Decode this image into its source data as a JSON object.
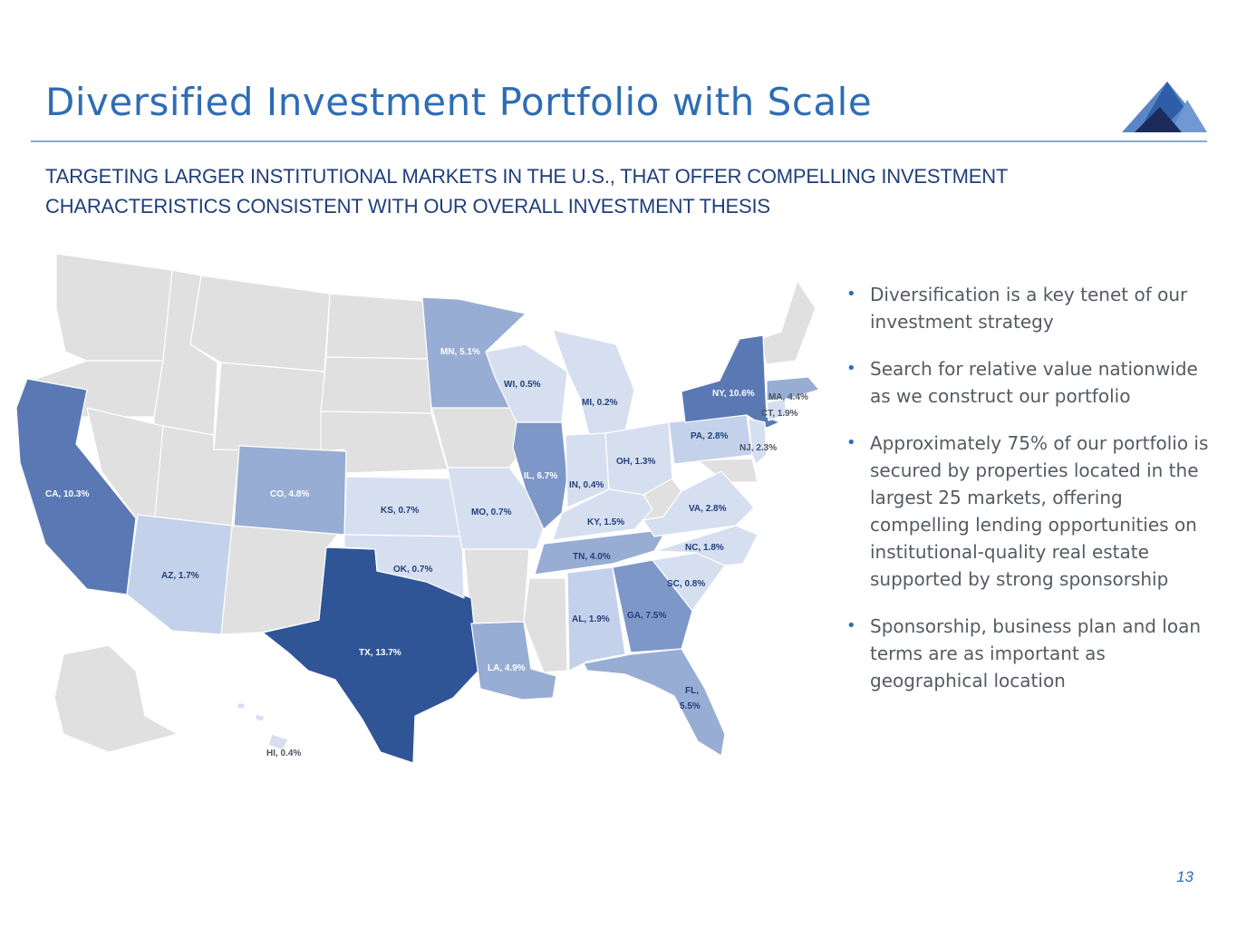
{
  "slide": {
    "title": "Diversified Investment Portfolio with Scale",
    "subtitle": "TARGETING LARGER INSTITUTIONAL MARKETS IN THE U.S., THAT OFFER COMPELLING INVESTMENT CHARACTERISTICS CONSISTENT WITH OUR OVERALL INVESTMENT THESIS",
    "page_number": "13"
  },
  "colors": {
    "title": "#2e6db4",
    "subtitle": "#1f3f7a",
    "no_allocation": "#e0e0e0",
    "tier_1": "#d6dff0",
    "tier_2": "#c4d1ea",
    "tier_3": "#98add3",
    "tier_4": "#7d97c8",
    "tier_5": "#5a79b4",
    "tier_6": "#2f5597"
  },
  "bullets": [
    {
      "text": "Diversification is a key tenet of our investment strategy"
    },
    {
      "text": "Search for relative value nationwide as we construct our portfolio"
    },
    {
      "text": "Approximately 75% of our portfolio is secured by properties located in the largest 25 markets, offering compelling lending opportunities on institutional-quality real estate supported by strong sponsorship"
    },
    {
      "text": "Sponsorship, business plan and loan terms are as important as geographical location"
    }
  ],
  "map": {
    "states": [
      {
        "code": "CA",
        "label": "CA, 10.3%",
        "value": 10.3
      },
      {
        "code": "AZ",
        "label": "AZ, 1.7%",
        "value": 1.7
      },
      {
        "code": "CO",
        "label": "CO, 4.8%",
        "value": 4.8
      },
      {
        "code": "TX",
        "label": "TX, 13.7%",
        "value": 13.7
      },
      {
        "code": "KS",
        "label": "KS, 0.7%",
        "value": 0.7
      },
      {
        "code": "OK",
        "label": "OK, 0.7%",
        "value": 0.7
      },
      {
        "code": "MN",
        "label": "MN, 5.1%",
        "value": 5.1
      },
      {
        "code": "MO",
        "label": "MO, 0.7%",
        "value": 0.7
      },
      {
        "code": "LA",
        "label": "LA, 4.9%",
        "value": 4.9
      },
      {
        "code": "WI",
        "label": "WI, 0.5%",
        "value": 0.5
      },
      {
        "code": "IL",
        "label": "IL, 6.7%",
        "value": 6.7
      },
      {
        "code": "MI",
        "label": "MI, 0.2%",
        "value": 0.2
      },
      {
        "code": "IN",
        "label": "IN, 0.4%",
        "value": 0.4
      },
      {
        "code": "OH",
        "label": "OH, 1.3%",
        "value": 1.3
      },
      {
        "code": "KY",
        "label": "KY, 1.5%",
        "value": 1.5
      },
      {
        "code": "TN",
        "label": "TN, 4.0%",
        "value": 4.0
      },
      {
        "code": "AL",
        "label": "AL, 1.9%",
        "value": 1.9
      },
      {
        "code": "GA",
        "label": "GA, 7.5%",
        "value": 7.5
      },
      {
        "code": "FL",
        "label_line1": "FL,",
        "label_line2": "5.5%",
        "value": 5.5
      },
      {
        "code": "SC",
        "label": "SC, 0.8%",
        "value": 0.8
      },
      {
        "code": "NC",
        "label": "NC, 1.8%",
        "value": 1.8
      },
      {
        "code": "VA",
        "label": "VA, 2.8%",
        "value": 2.8
      },
      {
        "code": "PA",
        "label": "PA, 2.8%",
        "value": 2.8
      },
      {
        "code": "NY",
        "label": "NY, 10.6%",
        "value": 10.6
      },
      {
        "code": "NJ",
        "label": "NJ, 2.3%",
        "value": 2.3
      },
      {
        "code": "CT",
        "label": "CT, 1.9%",
        "value": 1.9
      },
      {
        "code": "MA",
        "label": "MA, 4.4%",
        "value": 4.4
      },
      {
        "code": "HI",
        "label": "HI, 0.4%",
        "value": 0.4
      }
    ]
  }
}
